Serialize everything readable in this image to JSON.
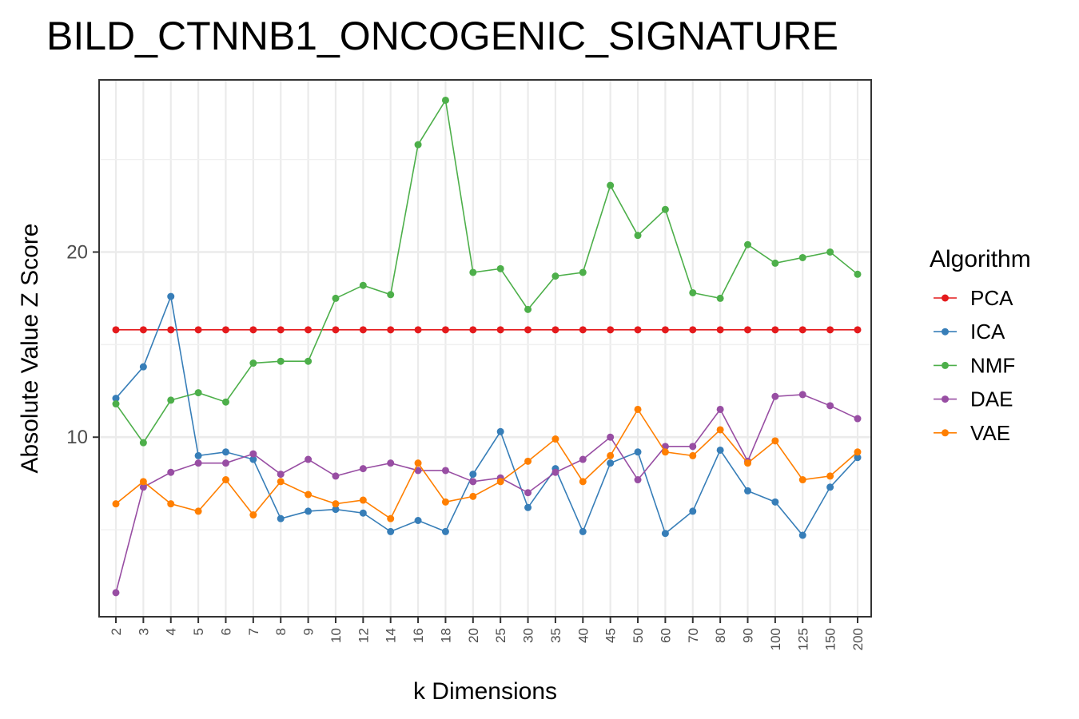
{
  "chart_data": {
    "type": "line",
    "title": "BILD_CTNNB1_ONCOGENIC_SIGNATURE",
    "xlabel": "k Dimensions",
    "ylabel": "Absolute Value Z Score",
    "categories": [
      "2",
      "3",
      "4",
      "5",
      "6",
      "7",
      "8",
      "9",
      "10",
      "12",
      "14",
      "16",
      "18",
      "20",
      "25",
      "30",
      "35",
      "40",
      "45",
      "50",
      "60",
      "70",
      "80",
      "90",
      "100",
      "125",
      "150",
      "200"
    ],
    "yticks": [
      "10",
      "20"
    ],
    "ylim": [
      0.3,
      29.3
    ],
    "grid": true,
    "legend": {
      "title": "Algorithm",
      "position": "right"
    },
    "series": [
      {
        "name": "PCA",
        "color": "#E41A1C",
        "values": [
          15.8,
          15.8,
          15.8,
          15.8,
          15.8,
          15.8,
          15.8,
          15.8,
          15.8,
          15.8,
          15.8,
          15.8,
          15.8,
          15.8,
          15.8,
          15.8,
          15.8,
          15.8,
          15.8,
          15.8,
          15.8,
          15.8,
          15.8,
          15.8,
          15.8,
          15.8,
          15.8,
          15.8
        ]
      },
      {
        "name": "ICA",
        "color": "#377EB8",
        "values": [
          12.1,
          13.8,
          17.6,
          9.0,
          9.2,
          8.8,
          5.6,
          6.0,
          6.1,
          5.9,
          4.9,
          5.5,
          4.9,
          8.0,
          10.3,
          6.2,
          8.3,
          4.9,
          8.6,
          9.2,
          4.8,
          6.0,
          9.3,
          7.1,
          6.5,
          4.7,
          7.3,
          8.9
        ]
      },
      {
        "name": "NMF",
        "color": "#4DAF4A",
        "values": [
          11.8,
          9.7,
          12.0,
          12.4,
          11.9,
          14.0,
          14.1,
          14.1,
          17.5,
          18.2,
          17.7,
          25.8,
          28.2,
          18.9,
          19.1,
          16.9,
          18.7,
          18.9,
          23.6,
          20.9,
          22.3,
          17.8,
          17.5,
          20.4,
          19.4,
          19.7,
          20.0,
          18.8
        ]
      },
      {
        "name": "DAE",
        "color": "#984EA3",
        "values": [
          1.6,
          7.3,
          8.1,
          8.6,
          8.6,
          9.1,
          8.0,
          8.8,
          7.9,
          8.3,
          8.6,
          8.2,
          8.2,
          7.6,
          7.8,
          7.0,
          8.1,
          8.8,
          10.0,
          7.7,
          9.5,
          9.5,
          11.5,
          8.7,
          12.2,
          12.3,
          11.7,
          11.0
        ]
      },
      {
        "name": "VAE",
        "color": "#FF7F00",
        "values": [
          6.4,
          7.6,
          6.4,
          6.0,
          7.7,
          5.8,
          7.6,
          6.9,
          6.4,
          6.6,
          5.6,
          8.6,
          6.5,
          6.8,
          7.6,
          8.7,
          9.9,
          7.6,
          9.0,
          11.5,
          9.2,
          9.0,
          10.4,
          8.6,
          9.8,
          7.7,
          7.9,
          9.2
        ]
      }
    ]
  }
}
